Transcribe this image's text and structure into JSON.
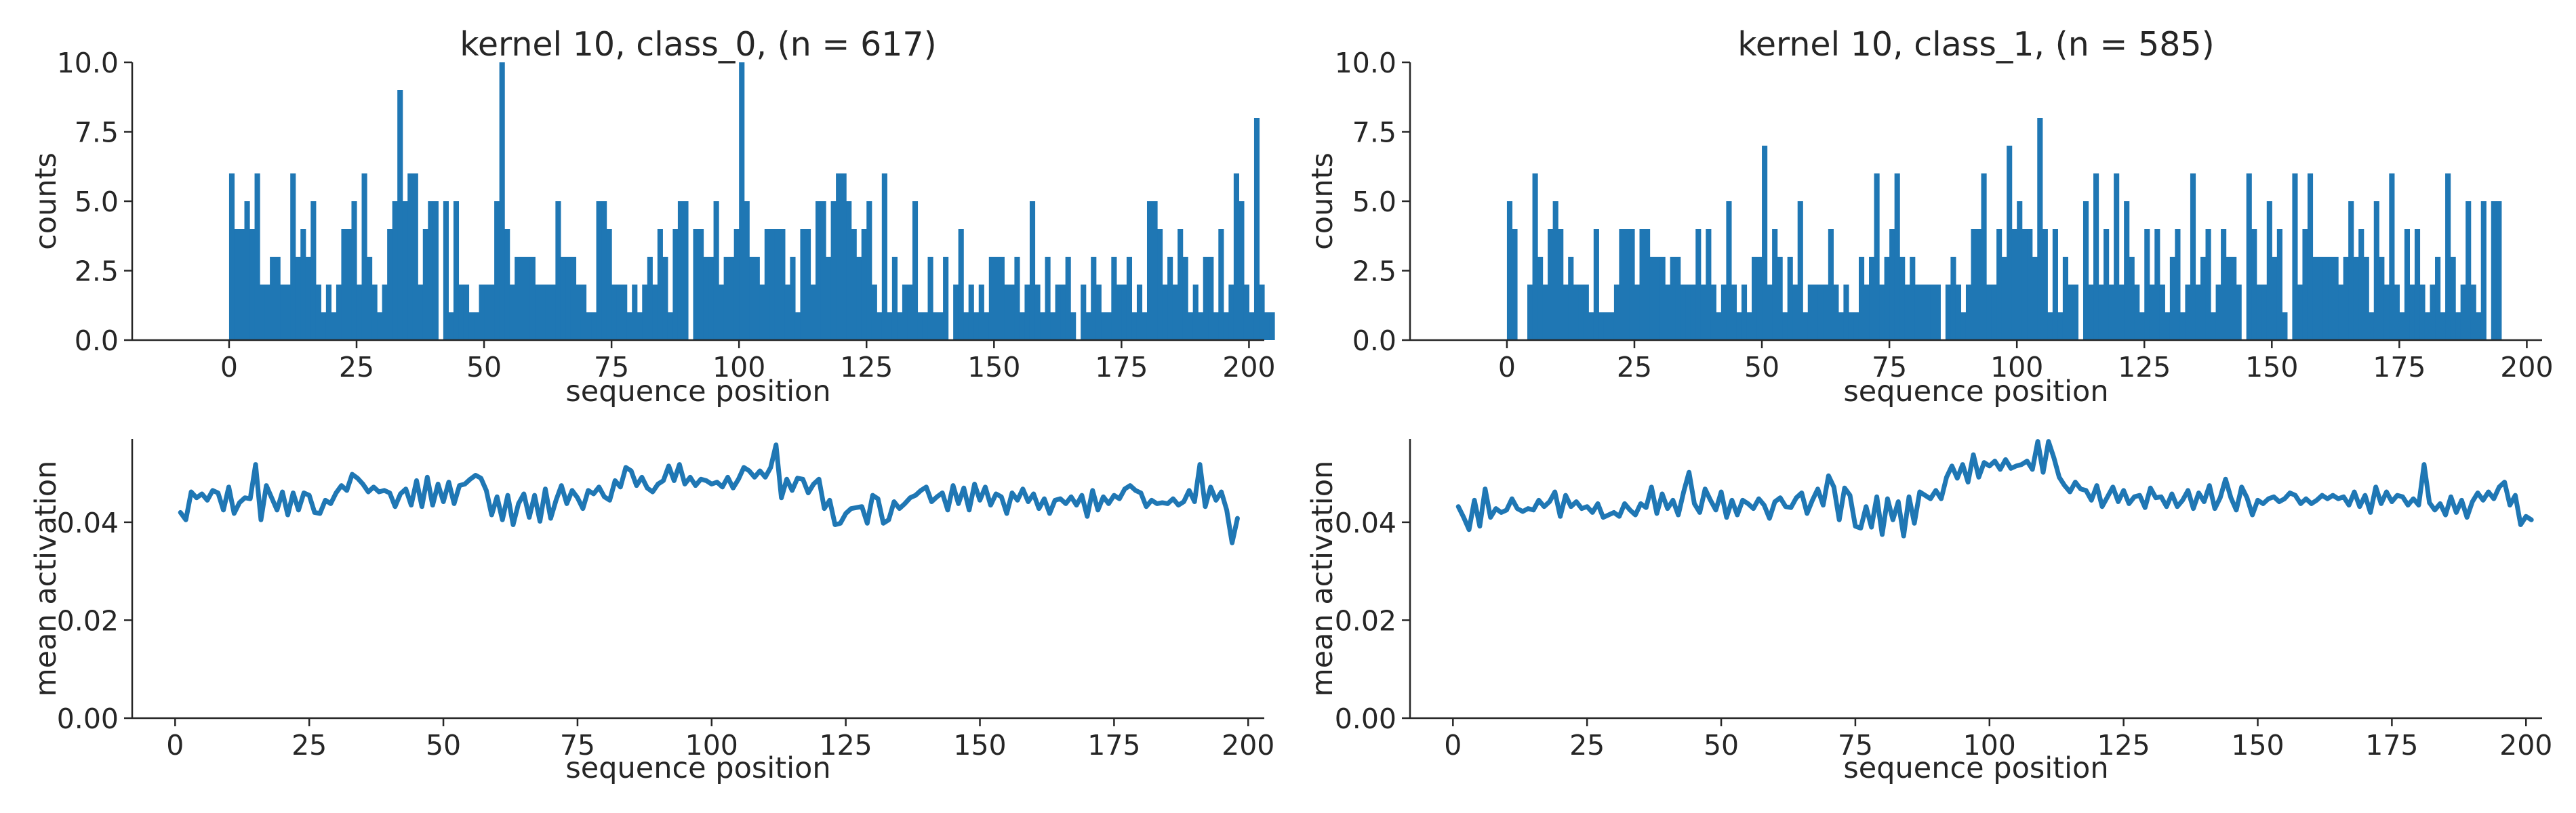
{
  "colors": {
    "series": "#1f77b4",
    "axis": "#262626",
    "background": "#ffffff"
  },
  "chart_data": [
    {
      "type": "bar",
      "panel": "class_0-histogram",
      "title": "kernel 10, class_0, (n = 617)",
      "xlabel": "sequence position",
      "ylabel": "counts",
      "xlim": [
        -19,
        203
      ],
      "ylim": [
        0,
        10
      ],
      "xticks": [
        0,
        25,
        50,
        75,
        100,
        125,
        150,
        175,
        200
      ],
      "yticks": [
        0.0,
        2.5,
        5.0,
        7.5,
        10.0
      ],
      "xtick_labels": [
        "0",
        "25",
        "50",
        "75",
        "100",
        "125",
        "150",
        "175",
        "200"
      ],
      "ytick_labels": [
        "0.0",
        "2.5",
        "5.0",
        "7.5",
        "10.0"
      ],
      "grid": false,
      "x_start": 0,
      "values": [
        6,
        4,
        4,
        5,
        4,
        6,
        2,
        2,
        3,
        3,
        2,
        2,
        6,
        3,
        4,
        3,
        5,
        2,
        1,
        2,
        1,
        2,
        4,
        4,
        5,
        2,
        6,
        3,
        2,
        1,
        2,
        4,
        5,
        9,
        5,
        6,
        6,
        2,
        4,
        5,
        5,
        0,
        5,
        1,
        5,
        2,
        2,
        1,
        1,
        2,
        2,
        2,
        5,
        10,
        4,
        2,
        3,
        3,
        3,
        3,
        2,
        2,
        2,
        2,
        5,
        3,
        3,
        3,
        2,
        2,
        1,
        1,
        5,
        5,
        4,
        2,
        2,
        2,
        1,
        2,
        1,
        2,
        3,
        2,
        4,
        3,
        1,
        4,
        5,
        5,
        0,
        4,
        4,
        3,
        3,
        5,
        2,
        3,
        3,
        4,
        10,
        5,
        3,
        3,
        2,
        4,
        4,
        4,
        4,
        2,
        3,
        1,
        4,
        4,
        2,
        5,
        5,
        3,
        5,
        6,
        6,
        5,
        4,
        3,
        4,
        5,
        2,
        1,
        6,
        1,
        3,
        1,
        2,
        2,
        5,
        1,
        1,
        3,
        1,
        1,
        3,
        0,
        2,
        4,
        1,
        2,
        1,
        2,
        1,
        3,
        3,
        3,
        2,
        2,
        3,
        1,
        2,
        5,
        2,
        1,
        3,
        1,
        2,
        2,
        3,
        1,
        0,
        2,
        1,
        3,
        2,
        1,
        1,
        3,
        2,
        2,
        3,
        1,
        2,
        1,
        5,
        5,
        4,
        2,
        3,
        2,
        4,
        3,
        1,
        2,
        1,
        3,
        3,
        1,
        4,
        1,
        2,
        6,
        5,
        2,
        1,
        8,
        2,
        1,
        1
      ]
    },
    {
      "type": "bar",
      "panel": "class_1-histogram",
      "title": "kernel 10, class_1, (n = 585)",
      "xlabel": "sequence position",
      "ylabel": "counts",
      "xlim": [
        -19,
        203
      ],
      "ylim": [
        0,
        10
      ],
      "xticks": [
        0,
        25,
        50,
        75,
        100,
        125,
        150,
        175,
        200
      ],
      "yticks": [
        0.0,
        2.5,
        5.0,
        7.5,
        10.0
      ],
      "xtick_labels": [
        "0",
        "25",
        "50",
        "75",
        "100",
        "125",
        "150",
        "175",
        "200"
      ],
      "ytick_labels": [
        "0.0",
        "2.5",
        "5.0",
        "7.5",
        "10.0"
      ],
      "grid": false,
      "x_start": 0,
      "values": [
        5,
        4,
        0,
        0,
        2,
        6,
        3,
        2,
        4,
        5,
        4,
        2,
        3,
        2,
        2,
        2,
        1,
        4,
        1,
        1,
        1,
        2,
        4,
        4,
        4,
        2,
        4,
        4,
        3,
        3,
        3,
        2,
        3,
        3,
        2,
        2,
        2,
        4,
        2,
        4,
        2,
        1,
        2,
        5,
        2,
        1,
        2,
        1,
        3,
        3,
        7,
        2,
        4,
        3,
        1,
        3,
        2,
        5,
        1,
        2,
        2,
        2,
        2,
        4,
        2,
        1,
        2,
        1,
        1,
        3,
        2,
        3,
        6,
        2,
        3,
        4,
        6,
        3,
        2,
        3,
        2,
        2,
        2,
        2,
        2,
        0,
        2,
        3,
        2,
        1,
        2,
        4,
        4,
        6,
        2,
        2,
        4,
        3,
        7,
        4,
        5,
        4,
        4,
        3,
        8,
        4,
        1,
        4,
        1,
        3,
        2,
        2,
        0,
        5,
        2,
        6,
        2,
        4,
        2,
        6,
        2,
        5,
        3,
        2,
        1,
        4,
        2,
        4,
        2,
        1,
        3,
        4,
        1,
        2,
        6,
        2,
        3,
        4,
        1,
        2,
        4,
        3,
        3,
        2,
        0,
        6,
        4,
        2,
        2,
        5,
        3,
        4,
        1,
        0,
        6,
        2,
        4,
        6,
        3,
        3,
        3,
        3,
        3,
        2,
        3,
        5,
        3,
        4,
        3,
        1,
        5,
        3,
        2,
        6,
        2,
        1,
        4,
        2,
        4,
        2,
        1,
        2,
        3,
        1,
        6,
        3,
        1,
        2,
        5,
        2,
        1,
        5,
        0,
        5,
        5
      ]
    },
    {
      "type": "line",
      "panel": "class_0-mean-activation",
      "xlabel": "sequence position",
      "ylabel": "mean activation",
      "xlim": [
        -8,
        203
      ],
      "ylim": [
        0,
        0.057
      ],
      "xticks": [
        0,
        25,
        50,
        75,
        100,
        125,
        150,
        175,
        200
      ],
      "yticks": [
        0.0,
        0.02,
        0.04
      ],
      "xtick_labels": [
        "0",
        "25",
        "50",
        "75",
        "100",
        "125",
        "150",
        "175",
        "200"
      ],
      "ytick_labels": [
        "0.00",
        "0.02",
        "0.04"
      ],
      "grid": false,
      "x_start": 1,
      "values": [
        0.042,
        0.0405,
        0.0462,
        0.045,
        0.0458,
        0.0445,
        0.0465,
        0.046,
        0.0425,
        0.0472,
        0.0418,
        0.044,
        0.045,
        0.0448,
        0.0518,
        0.0405,
        0.0475,
        0.045,
        0.0425,
        0.0462,
        0.0415,
        0.046,
        0.0425,
        0.046,
        0.0455,
        0.042,
        0.0418,
        0.0445,
        0.0438,
        0.046,
        0.0475,
        0.0465,
        0.0498,
        0.049,
        0.0478,
        0.0462,
        0.0472,
        0.0462,
        0.0465,
        0.046,
        0.0432,
        0.0458,
        0.0468,
        0.0435,
        0.0485,
        0.0432,
        0.0492,
        0.0435,
        0.0478,
        0.0442,
        0.0482,
        0.0438,
        0.0475,
        0.0478,
        0.0488,
        0.0496,
        0.049,
        0.0465,
        0.0415,
        0.0452,
        0.0405,
        0.0455,
        0.0395,
        0.0438,
        0.0458,
        0.041,
        0.0455,
        0.0402,
        0.0468,
        0.0408,
        0.0445,
        0.0475,
        0.0438,
        0.0465,
        0.045,
        0.0428,
        0.0465,
        0.0458,
        0.0472,
        0.0452,
        0.0445,
        0.0485,
        0.0472,
        0.0512,
        0.0505,
        0.0475,
        0.0492,
        0.047,
        0.0462,
        0.0478,
        0.0485,
        0.0515,
        0.0485,
        0.0518,
        0.0478,
        0.0492,
        0.0475,
        0.0488,
        0.0485,
        0.0478,
        0.0482,
        0.0472,
        0.0492,
        0.047,
        0.0488,
        0.0512,
        0.0505,
        0.0492,
        0.0505,
        0.0492,
        0.0512,
        0.0558,
        0.045,
        0.0488,
        0.0465,
        0.049,
        0.0488,
        0.046,
        0.0478,
        0.0488,
        0.0428,
        0.0445,
        0.0395,
        0.0398,
        0.0418,
        0.0428,
        0.043,
        0.0432,
        0.0398,
        0.0455,
        0.0448,
        0.0398,
        0.0405,
        0.0442,
        0.0428,
        0.0438,
        0.045,
        0.0455,
        0.0465,
        0.0472,
        0.0442,
        0.0452,
        0.046,
        0.0425,
        0.0475,
        0.0438,
        0.047,
        0.0425,
        0.0478,
        0.0445,
        0.0472,
        0.0435,
        0.0458,
        0.0452,
        0.0418,
        0.046,
        0.0445,
        0.0468,
        0.0442,
        0.0458,
        0.0428,
        0.0448,
        0.0418,
        0.0445,
        0.0448,
        0.0438,
        0.0452,
        0.0435,
        0.0455,
        0.0412,
        0.0465,
        0.0425,
        0.0452,
        0.0438,
        0.0455,
        0.0448,
        0.0468,
        0.0475,
        0.0465,
        0.046,
        0.0432,
        0.0445,
        0.0438,
        0.044,
        0.0438,
        0.0448,
        0.0435,
        0.0442,
        0.0465,
        0.0442,
        0.0518,
        0.0432,
        0.0472,
        0.0445,
        0.0462,
        0.0425,
        0.0358,
        0.0408
      ]
    },
    {
      "type": "line",
      "panel": "class_1-mean-activation",
      "xlabel": "sequence position",
      "ylabel": "mean activation",
      "xlim": [
        -8,
        203
      ],
      "ylim": [
        0,
        0.057
      ],
      "xticks": [
        0,
        25,
        50,
        75,
        100,
        125,
        150,
        175,
        200
      ],
      "yticks": [
        0.0,
        0.02,
        0.04
      ],
      "xtick_labels": [
        "0",
        "25",
        "50",
        "75",
        "100",
        "125",
        "150",
        "175",
        "200"
      ],
      "ytick_labels": [
        "0.00",
        "0.02",
        "0.04"
      ],
      "grid": false,
      "x_start": 1,
      "values": [
        0.0432,
        0.041,
        0.0385,
        0.0445,
        0.0392,
        0.0468,
        0.041,
        0.0428,
        0.042,
        0.0425,
        0.0448,
        0.0428,
        0.0422,
        0.0428,
        0.0425,
        0.0445,
        0.0432,
        0.0442,
        0.0462,
        0.0412,
        0.0455,
        0.0432,
        0.0442,
        0.0428,
        0.0432,
        0.042,
        0.0438,
        0.041,
        0.0415,
        0.042,
        0.0412,
        0.0438,
        0.0425,
        0.0415,
        0.0438,
        0.043,
        0.0472,
        0.0418,
        0.0458,
        0.0428,
        0.0445,
        0.0415,
        0.0462,
        0.0502,
        0.0438,
        0.042,
        0.0468,
        0.0445,
        0.0425,
        0.0462,
        0.041,
        0.0445,
        0.0415,
        0.0445,
        0.0438,
        0.0428,
        0.0448,
        0.0435,
        0.0408,
        0.0442,
        0.045,
        0.0432,
        0.043,
        0.045,
        0.046,
        0.0418,
        0.0445,
        0.0468,
        0.0435,
        0.0495,
        0.0472,
        0.0405,
        0.047,
        0.0455,
        0.0392,
        0.0388,
        0.0432,
        0.039,
        0.0452,
        0.0375,
        0.0448,
        0.0405,
        0.0442,
        0.0372,
        0.0452,
        0.0398,
        0.0462,
        0.0455,
        0.0448,
        0.0465,
        0.0448,
        0.0492,
        0.0515,
        0.049,
        0.0518,
        0.0482,
        0.0538,
        0.0492,
        0.0522,
        0.0515,
        0.0525,
        0.0508,
        0.0528,
        0.051,
        0.0515,
        0.0518,
        0.0525,
        0.0508,
        0.0565,
        0.0502,
        0.0565,
        0.0532,
        0.0492,
        0.0475,
        0.0462,
        0.0482,
        0.0468,
        0.0465,
        0.0445,
        0.0475,
        0.0432,
        0.0452,
        0.0472,
        0.0442,
        0.0465,
        0.0438,
        0.0452,
        0.0455,
        0.043,
        0.047,
        0.045,
        0.0452,
        0.0432,
        0.0458,
        0.0432,
        0.0445,
        0.0465,
        0.0428,
        0.046,
        0.0442,
        0.0475,
        0.0428,
        0.045,
        0.0488,
        0.045,
        0.0425,
        0.0472,
        0.045,
        0.0415,
        0.0445,
        0.0438,
        0.0448,
        0.0452,
        0.0442,
        0.0448,
        0.046,
        0.0455,
        0.0438,
        0.0448,
        0.0438,
        0.0445,
        0.0455,
        0.0448,
        0.0455,
        0.0448,
        0.0452,
        0.0435,
        0.0462,
        0.0432,
        0.0455,
        0.042,
        0.0472,
        0.0438,
        0.0462,
        0.0442,
        0.0455,
        0.0452,
        0.0435,
        0.0448,
        0.0435,
        0.0518,
        0.044,
        0.0425,
        0.0438,
        0.0415,
        0.0452,
        0.042,
        0.0445,
        0.041,
        0.0442,
        0.046,
        0.0445,
        0.0462,
        0.0448,
        0.0472,
        0.0482,
        0.0435,
        0.0455,
        0.0395,
        0.0412,
        0.0405
      ]
    }
  ]
}
